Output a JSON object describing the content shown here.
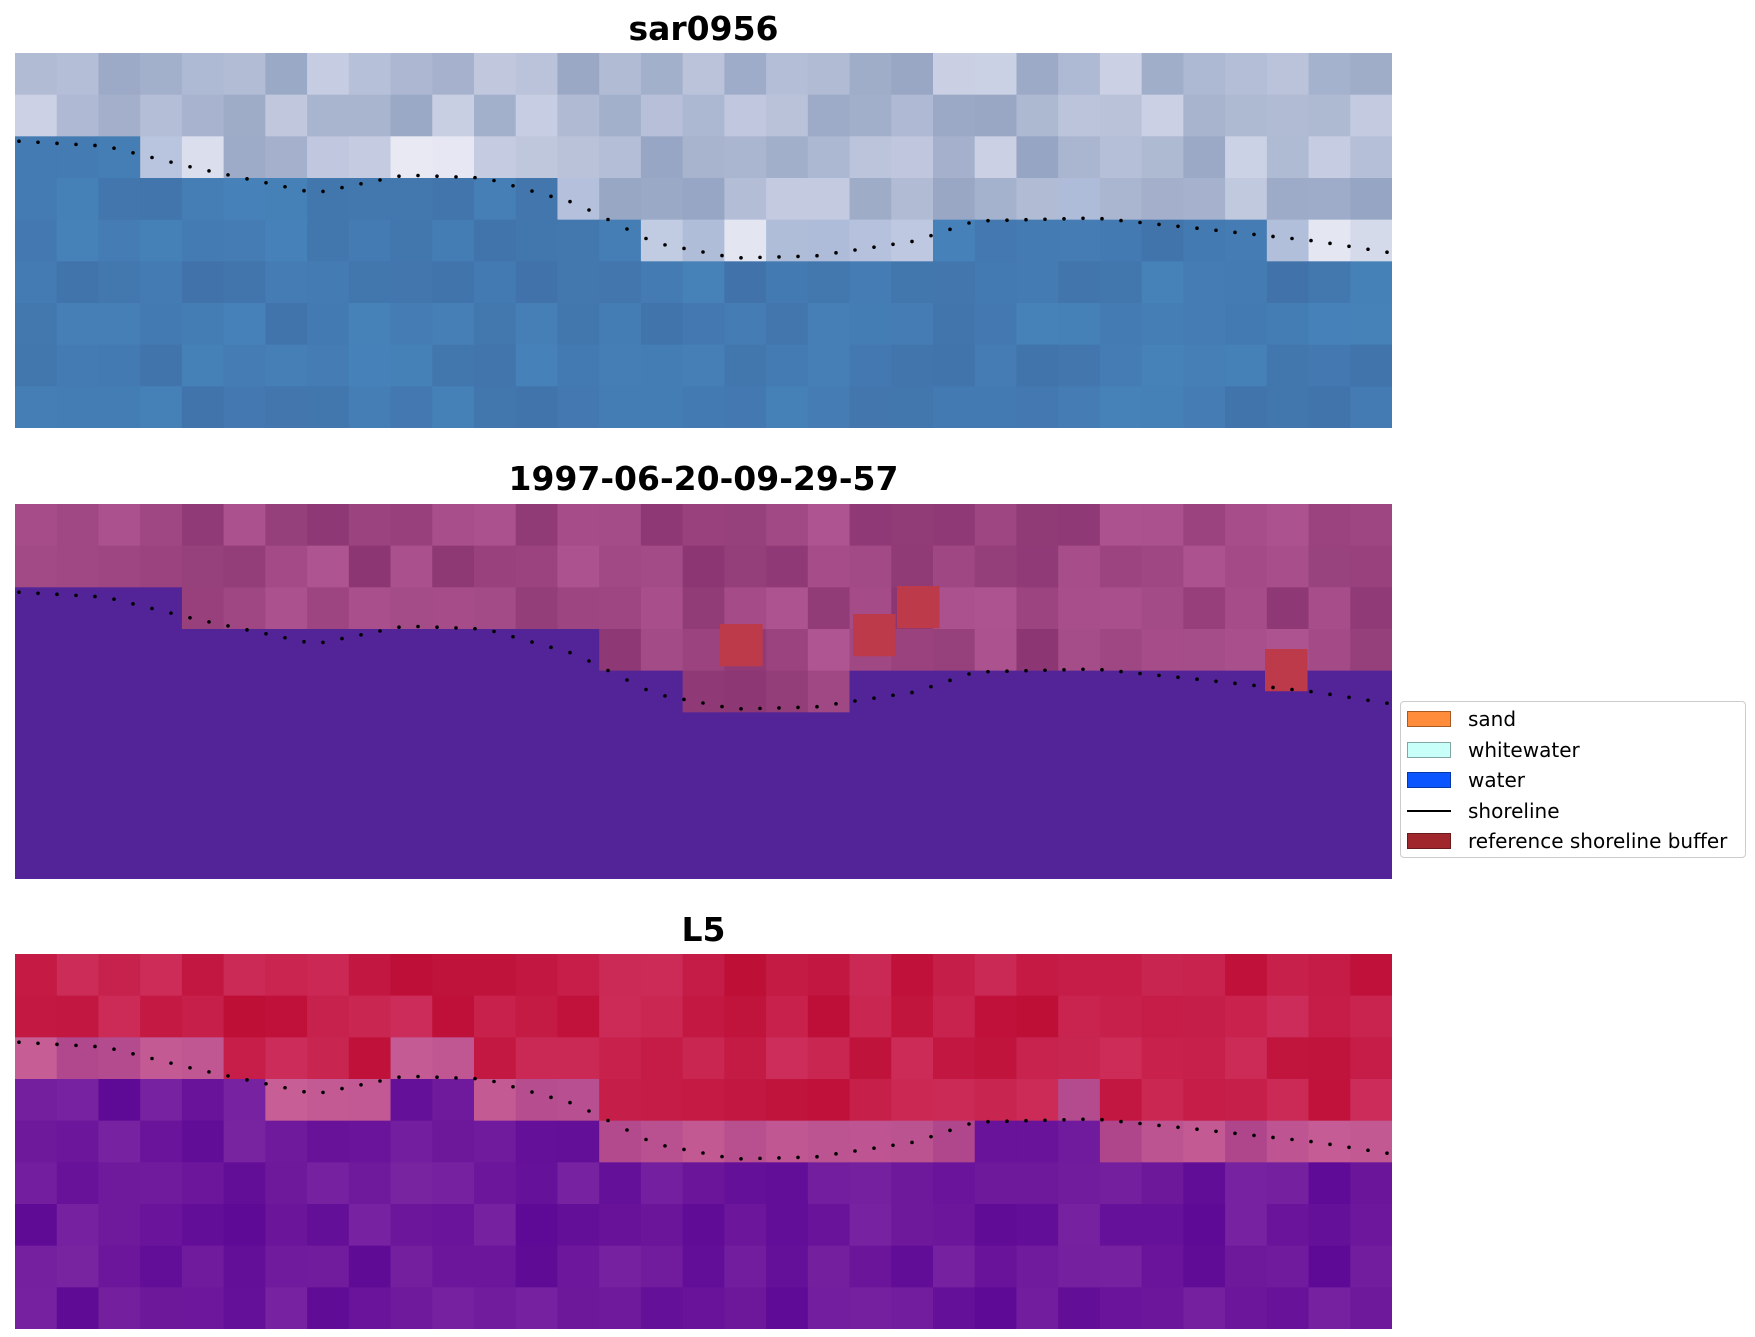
{
  "panels": [
    {
      "title": "sar0956",
      "kind": "rgb"
    },
    {
      "title": "1997-06-20-09-29-57",
      "kind": "classified"
    },
    {
      "title": "L5",
      "kind": "ndwi"
    }
  ],
  "legend": {
    "items": [
      {
        "label": "sand",
        "color": "#ff8c3a",
        "type": "patch"
      },
      {
        "label": "whitewater",
        "color": "#c8fff8",
        "type": "patch"
      },
      {
        "label": "water",
        "color": "#0a55ff",
        "type": "patch"
      },
      {
        "label": "shoreline",
        "color": "#000000",
        "type": "line"
      },
      {
        "label": "reference shoreline buffer",
        "color": "#a0282c",
        "type": "patch"
      }
    ]
  }
}
